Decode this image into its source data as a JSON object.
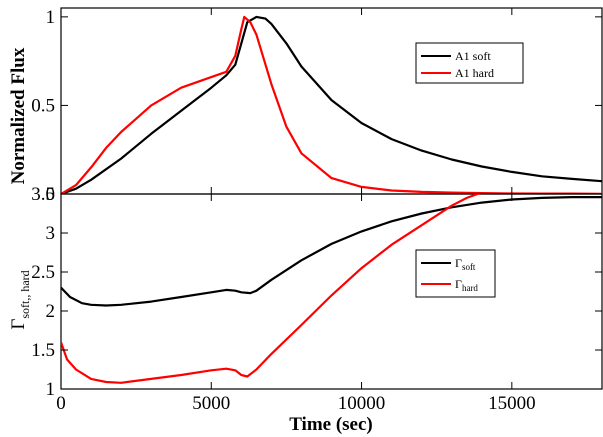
{
  "chart_data": [
    {
      "type": "line",
      "ylabel": "Normalized Flux",
      "xlim": [
        0,
        18000
      ],
      "ylim": [
        0,
        1.05
      ],
      "ytick_labels": [
        "0",
        "0.5",
        "1"
      ],
      "legend_position": "top-right",
      "series": [
        {
          "name": "A1 soft",
          "color": "#000000",
          "x": [
            0,
            500,
            1000,
            2000,
            3000,
            4000,
            5000,
            5500,
            5800,
            6000,
            6200,
            6500,
            6800,
            7000,
            7500,
            8000,
            9000,
            10000,
            11000,
            12000,
            13000,
            14000,
            15000,
            16000,
            17000,
            18000
          ],
          "y": [
            0,
            0.03,
            0.08,
            0.2,
            0.34,
            0.47,
            0.6,
            0.67,
            0.73,
            0.85,
            0.97,
            1.0,
            0.99,
            0.96,
            0.85,
            0.72,
            0.53,
            0.4,
            0.31,
            0.245,
            0.195,
            0.155,
            0.125,
            0.1,
            0.085,
            0.072
          ]
        },
        {
          "name": "A1 hard",
          "color": "#ff0000",
          "x": [
            0,
            500,
            1000,
            1500,
            2000,
            3000,
            4000,
            5000,
            5500,
            5800,
            6000,
            6100,
            6300,
            6500,
            7000,
            7500,
            8000,
            9000,
            10000,
            11000,
            12000,
            13000,
            14000,
            15000,
            16000,
            17000,
            18000
          ],
          "y": [
            0,
            0.05,
            0.15,
            0.26,
            0.35,
            0.5,
            0.6,
            0.66,
            0.69,
            0.78,
            0.93,
            1.0,
            0.97,
            0.9,
            0.62,
            0.38,
            0.23,
            0.09,
            0.04,
            0.02,
            0.012,
            0.008,
            0.005,
            0.003,
            0.002,
            0.002,
            0.001
          ]
        }
      ]
    },
    {
      "type": "line",
      "xlabel": "Time (sec)",
      "ylabel_main": "Γ",
      "ylabel_sub": "soft,, hard",
      "xlim": [
        0,
        18000
      ],
      "ylim": [
        1,
        3.5
      ],
      "xtick_labels": [
        "0",
        "5000",
        "10000",
        "15000"
      ],
      "ytick_labels": [
        "1",
        "1.5",
        "2",
        "2.5",
        "3",
        "3.5"
      ],
      "legend_position": "right",
      "series": [
        {
          "name": "Γ",
          "name_sub": "soft",
          "color": "#000000",
          "x": [
            0,
            300,
            700,
            1000,
            1500,
            2000,
            3000,
            4000,
            5000,
            5500,
            5800,
            6000,
            6300,
            6500,
            7000,
            8000,
            9000,
            10000,
            11000,
            12000,
            13000,
            14000,
            15000,
            16000,
            17000,
            18000
          ],
          "y": [
            2.3,
            2.18,
            2.1,
            2.08,
            2.07,
            2.08,
            2.12,
            2.18,
            2.24,
            2.27,
            2.26,
            2.24,
            2.23,
            2.26,
            2.4,
            2.65,
            2.86,
            3.02,
            3.15,
            3.25,
            3.33,
            3.39,
            3.43,
            3.45,
            3.46,
            3.46
          ]
        },
        {
          "name": "Γ",
          "name_sub": "hard",
          "color": "#ff0000",
          "x": [
            0,
            200,
            500,
            1000,
            1500,
            2000,
            3000,
            4000,
            5000,
            5500,
            5800,
            6000,
            6200,
            6500,
            7000,
            8000,
            9000,
            10000,
            11000,
            12000,
            13000,
            13500,
            14000
          ],
          "y": [
            1.6,
            1.38,
            1.25,
            1.13,
            1.09,
            1.08,
            1.13,
            1.18,
            1.24,
            1.26,
            1.24,
            1.18,
            1.16,
            1.25,
            1.45,
            1.82,
            2.2,
            2.55,
            2.85,
            3.1,
            3.35,
            3.45,
            3.52
          ]
        }
      ]
    }
  ]
}
